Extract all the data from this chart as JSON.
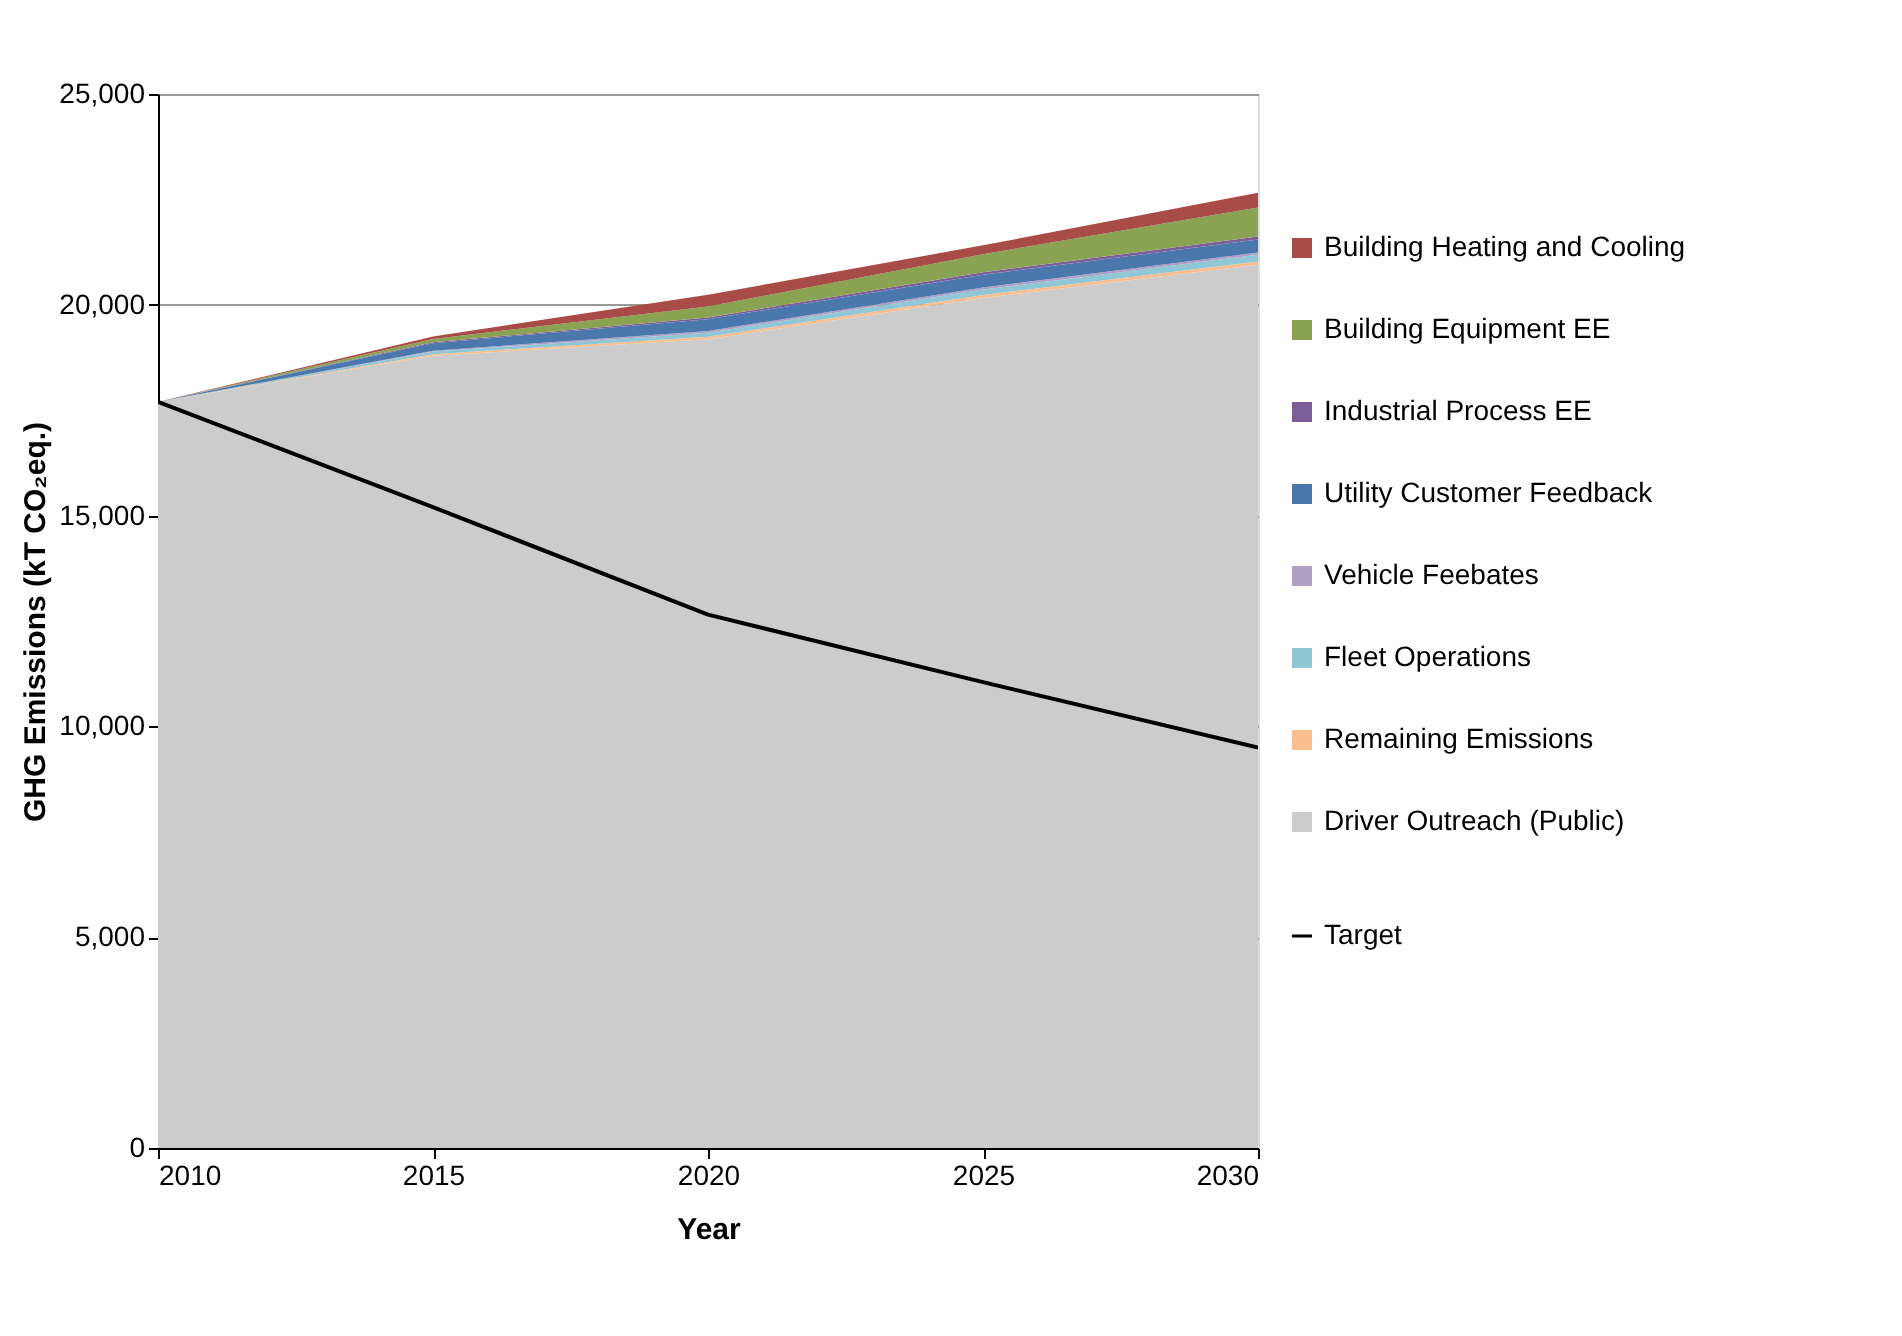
{
  "chart_data": {
    "type": "area",
    "stacked": true,
    "xlabel": "Year",
    "ylabel": "GHG Emissions (kT CO₂eq.)",
    "x": [
      2010,
      2015,
      2020,
      2025,
      2030
    ],
    "xlim": [
      2010,
      2030
    ],
    "xticks": [
      2010,
      2015,
      2020,
      2025,
      2030
    ],
    "ylim": [
      0,
      25000
    ],
    "yticks": [
      0,
      {
        "value": 5000,
        "label": "5,000"
      },
      {
        "value": 10000,
        "label": "10,000"
      },
      {
        "value": 15000,
        "label": "15,000"
      },
      {
        "value": 20000,
        "label": "20,000"
      },
      {
        "value": 25000,
        "label": "25,000"
      }
    ],
    "grid": "y",
    "legend": "right",
    "series": [
      {
        "name": "Driver Outreach (Public)",
        "color": "#cccccc",
        "values": [
          17700,
          18790,
          19180,
          20160,
          20950
        ]
      },
      {
        "name": "Remaining Emissions",
        "color": "#fbbf8f",
        "values": [
          0,
          40,
          60,
          70,
          80
        ]
      },
      {
        "name": "Fleet Operations",
        "color": "#8fc7d6",
        "values": [
          0,
          60,
          100,
          130,
          160
        ]
      },
      {
        "name": "Vehicle Feebates",
        "color": "#b0a0c8",
        "values": [
          0,
          20,
          40,
          50,
          50
        ]
      },
      {
        "name": "Utility Customer Feedback",
        "color": "#4a78ac",
        "values": [
          0,
          180,
          280,
          300,
          310
        ]
      },
      {
        "name": "Industrial Process EE",
        "color": "#7b5e9a",
        "values": [
          0,
          20,
          40,
          60,
          70
        ]
      },
      {
        "name": "Building Equipment EE",
        "color": "#8aa352",
        "values": [
          0,
          80,
          260,
          430,
          690
        ]
      },
      {
        "name": "Building Heating and Cooling",
        "color": "#a94b47",
        "values": [
          0,
          60,
          280,
          210,
          350
        ]
      },
      {
        "name": "Target",
        "type": "line",
        "color": "#000000",
        "values": [
          17700,
          15200,
          12650,
          11050,
          9500
        ]
      }
    ]
  }
}
